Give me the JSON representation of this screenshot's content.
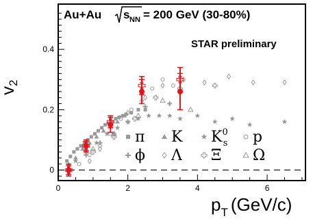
{
  "chart_data": {
    "type": "scatter",
    "title": "",
    "annotations": {
      "system": "Au+Au",
      "energy_sqrt": "s",
      "energy_sub": "NN",
      "energy_value": "= 200 GeV (30-80%)",
      "label": "STAR preliminary"
    },
    "xlabel_main": "p",
    "xlabel_sub": "T",
    "xlabel_units": "(GeV/c)",
    "ylabel_main": "v",
    "ylabel_sub": "2",
    "xlim": [
      0,
      7.1
    ],
    "ylim": [
      -0.035,
      0.55
    ],
    "x_ticks": [
      0,
      2,
      4,
      6
    ],
    "y_ticks": [
      0,
      0.2,
      0.4
    ],
    "x_tick_labels": [
      "0",
      "2",
      "4",
      "6"
    ],
    "y_tick_labels": [
      "0",
      "0.2",
      "0.4"
    ],
    "grid": false,
    "legend_position": "lower-right",
    "series": [
      {
        "name": "π",
        "symbol": "square",
        "color": "#999999",
        "x": [
          0.25,
          0.35,
          0.45,
          0.55,
          0.65,
          0.75,
          0.85,
          0.95,
          1.05,
          1.15,
          1.25,
          1.35,
          1.45,
          1.55,
          1.65,
          1.75,
          1.85,
          1.95,
          2.1,
          2.3,
          2.5
        ],
        "y": [
          0.03,
          0.045,
          0.06,
          0.07,
          0.08,
          0.09,
          0.1,
          0.11,
          0.12,
          0.13,
          0.14,
          0.15,
          0.155,
          0.16,
          0.17,
          0.175,
          0.18,
          0.185,
          0.19,
          0.2,
          0.2
        ]
      },
      {
        "name": "K",
        "symbol": "triangle-filled",
        "color": "#999999",
        "x": [
          0.3,
          0.5,
          0.7,
          0.9,
          1.1,
          1.3,
          1.5,
          1.7,
          1.9
        ],
        "y": [
          0.02,
          0.04,
          0.07,
          0.09,
          0.11,
          0.13,
          0.15,
          0.16,
          0.18
        ]
      },
      {
        "name": "K0s",
        "label_base": "K",
        "label_sup": "0",
        "label_sub": "s",
        "symbol": "star",
        "color": "#999999",
        "x": [
          0.5,
          0.8,
          1.1,
          1.4,
          1.7,
          2.0,
          2.3,
          2.6,
          2.9,
          3.2,
          3.5,
          4.0,
          4.5,
          5.0,
          5.5,
          6.5
        ],
        "y": [
          0.03,
          0.06,
          0.09,
          0.12,
          0.14,
          0.16,
          0.17,
          0.18,
          0.18,
          0.18,
          0.17,
          0.18,
          0.16,
          0.17,
          0.15,
          0.16
        ]
      },
      {
        "name": "p",
        "symbol": "circle-open",
        "color": "#999999",
        "x": [
          0.6,
          0.9,
          1.2,
          1.5,
          1.8,
          2.1,
          2.4,
          2.7,
          3.0,
          3.3
        ],
        "y": [
          0.02,
          0.05,
          0.08,
          0.12,
          0.17,
          0.2,
          0.23,
          0.27,
          0.3,
          0.28
        ]
      },
      {
        "name": "ϕ",
        "symbol": "cross",
        "color": "#999999",
        "x": [
          0.8,
          1.2,
          1.6,
          2.0,
          2.5,
          3.2
        ],
        "y": [
          0.05,
          0.09,
          0.12,
          0.16,
          0.21,
          0.22
        ]
      },
      {
        "name": "Λ",
        "symbol": "diamond-open",
        "color": "#999999",
        "x": [
          0.9,
          1.2,
          1.6,
          2.0,
          2.5,
          3.0,
          3.6,
          4.2,
          4.9,
          5.6,
          6.5
        ],
        "y": [
          0.03,
          0.07,
          0.12,
          0.19,
          0.24,
          0.28,
          0.3,
          0.29,
          0.31,
          0.29,
          0.29
        ]
      },
      {
        "name": "Ξ",
        "symbol": "cross-open",
        "color": "#999999",
        "x": [
          1.0,
          1.6,
          2.2,
          2.8,
          3.5,
          4.5
        ],
        "y": [
          0.06,
          0.11,
          0.17,
          0.24,
          0.27,
          0.28
        ]
      },
      {
        "name": "Ω",
        "symbol": "triangle-open",
        "color": "#999999",
        "x": [
          1.0,
          1.6,
          2.3,
          3.0,
          3.8
        ],
        "y": [
          0.07,
          0.12,
          0.18,
          0.23,
          0.2
        ]
      },
      {
        "name": "highlight-filled",
        "symbol": "circle-filled",
        "color": "#e0151b",
        "x": [
          0.3,
          0.8,
          1.5,
          2.4,
          3.5
        ],
        "y": [
          0.0,
          0.08,
          0.15,
          0.26,
          0.26
        ],
        "yerr": [
          0.02,
          0.02,
          0.025,
          0.04,
          0.06
        ]
      },
      {
        "name": "highlight-open",
        "symbol": "cross-open",
        "color": "#e0151b",
        "x": [
          0.3,
          0.8,
          1.5,
          2.4,
          3.5
        ],
        "y": [
          0.0,
          0.08,
          0.16,
          0.28,
          0.3
        ],
        "yerr": [
          0.015,
          0.015,
          0.02,
          0.03,
          0.04
        ]
      }
    ]
  }
}
